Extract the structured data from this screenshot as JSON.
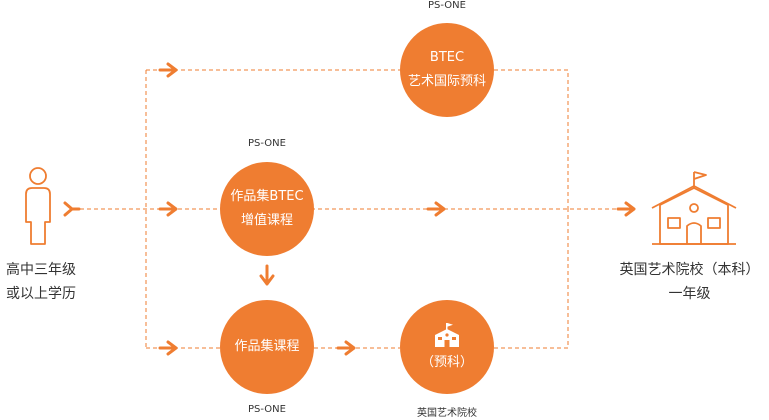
{
  "colors": {
    "accent": "#ef7d31",
    "text": "#333333"
  },
  "icons": {
    "student": "person-outline-icon",
    "university": "school-building-icon",
    "foundation_school": "school-building-icon"
  },
  "start": {
    "line1": "高中三年级",
    "line2": "或以上学历"
  },
  "end": {
    "line1": "英国艺术院校（本科）",
    "line2": "一年级"
  },
  "nodes": {
    "btec_art": {
      "tag": "PS-ONE",
      "line1": "BTEC",
      "line2": "艺术国际预科"
    },
    "portfolio_btec": {
      "tag": "PS-ONE",
      "line1": "作品集BTEC",
      "line2": "增值课程"
    },
    "portfolio": {
      "tag": "PS-ONE",
      "line1": "作品集课程"
    },
    "foundation": {
      "tag": "英国艺术院校",
      "line1": "（预科）"
    }
  }
}
